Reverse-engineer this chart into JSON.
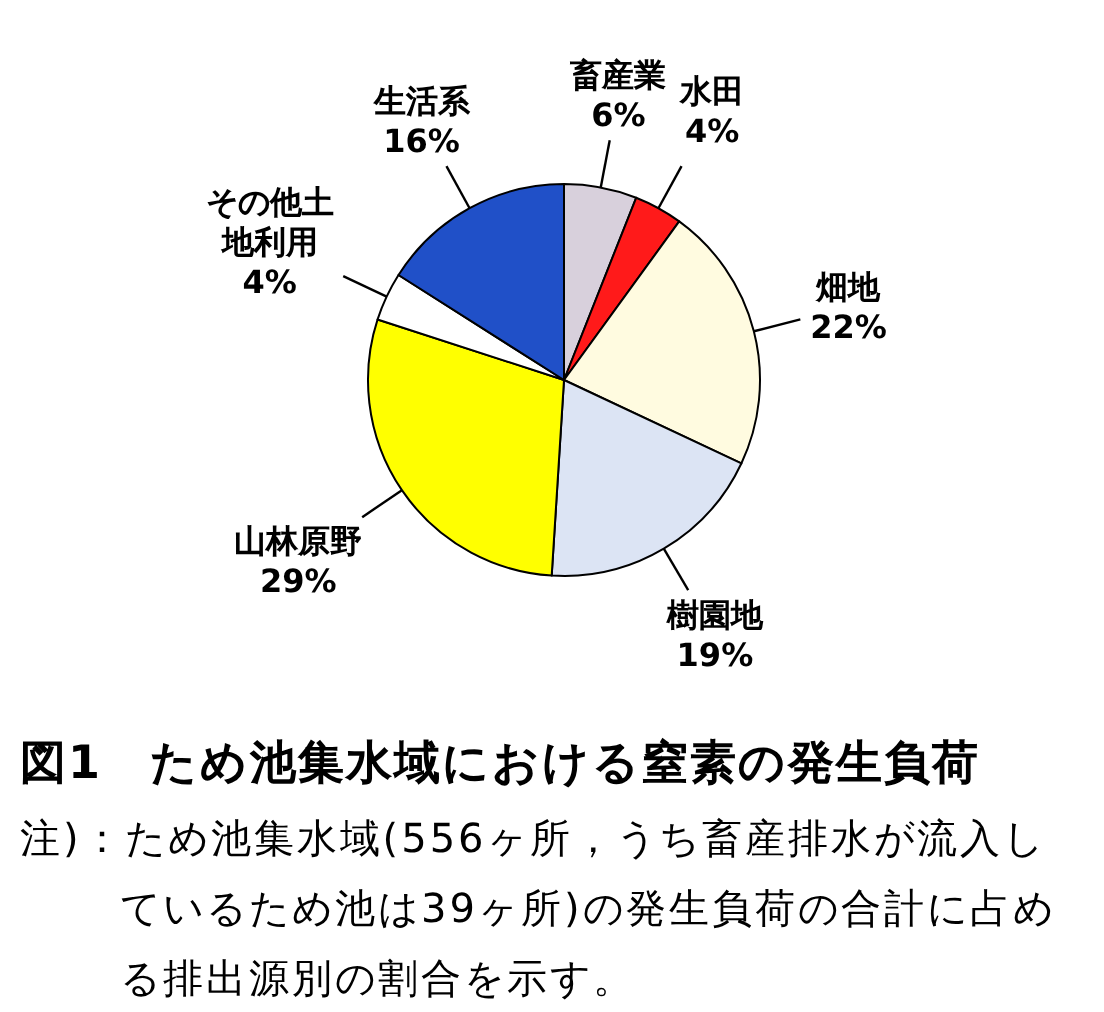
{
  "chart_data": {
    "type": "pie",
    "title": "図1　ため池集水域における窒素の発生負荷",
    "categories": [
      "畜産業",
      "水田",
      "畑地",
      "樹園地",
      "山林原野",
      "その他土地利用",
      "生活系"
    ],
    "values": [
      6,
      4,
      22,
      19,
      29,
      4,
      16
    ],
    "value_labels": [
      "6%",
      "4%",
      "22%",
      "19%",
      "29%",
      "4%",
      "16%"
    ],
    "colors": [
      "#d8d0dc",
      "#ff1a1a",
      "#fffbe0",
      "#dce4f4",
      "#ffff00",
      "#ffffff",
      "#2050c8"
    ],
    "annotations": [
      "注)：ため池集水域(556ヶ所，うち畜産排水が流入しているため池は39ヶ所)の発生負荷の合計に占める排出源別の割合を示す。"
    ]
  }
}
